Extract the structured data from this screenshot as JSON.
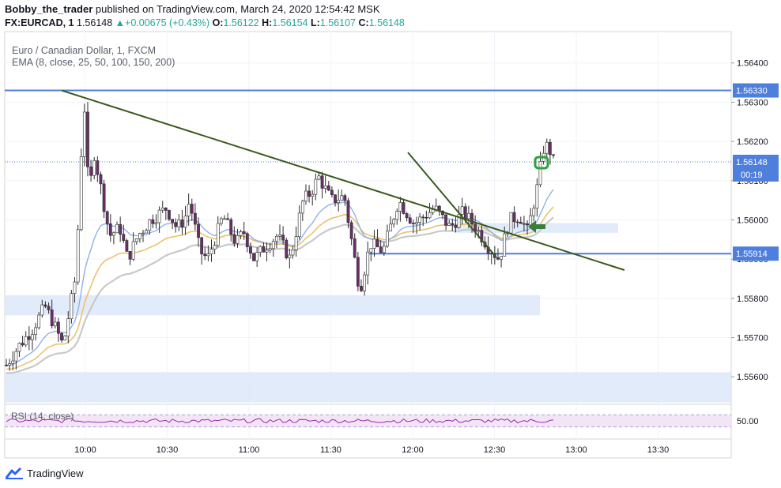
{
  "header": {
    "author": "Bobby_the_trader",
    "published_text": "published on TradingView.com, March 24, 2020 12:54:42 MSK",
    "symbol": "FX:EURCAD, 1",
    "last": "1.56148",
    "change": "+0.00675 (+0.43%)",
    "o_label": "O:",
    "o_value": "1.56122",
    "h_label": "H:",
    "h_value": "1.56154",
    "l_label": "L:",
    "l_value": "1.56107",
    "c_label": "C:",
    "c_value": "1.56148"
  },
  "legend": {
    "title": "Euro / Canadian Dollar, 1, FXCM",
    "ema": "EMA (8, close, 25, 50, 100, 150, 200)",
    "rsi": "RSI (14, close)"
  },
  "footer": {
    "brand": "TradingView"
  },
  "colors": {
    "bull": "#ffffff",
    "bear": "#6b2f6b",
    "wick": "#2b2b2b",
    "hline": "#4f7fdc",
    "zone": "#dce7f8",
    "trend": "#3a5a1c",
    "ema_fast": "#8fb2e8",
    "ema_mid": "#ecc26b",
    "ema_slow": "#c9c9cc",
    "rsi": "#9c27b0",
    "rsi_band": "#f3e5f5",
    "marker": "#2aa33a",
    "price_tag": "#4f7fdc",
    "arrow": "#3b7d3b"
  },
  "chart_data": {
    "type": "candlestick",
    "title": "Euro / Canadian Dollar, 1, FXCM",
    "ylim": [
      1.5553,
      1.5648
    ],
    "y_ticks": [
      "1.56400",
      "1.56300",
      "1.56200",
      "1.56100",
      "1.56000",
      "1.55900",
      "1.55800",
      "1.55700",
      "1.55600"
    ],
    "x_ticks": [
      "10:00",
      "10:30",
      "11:00",
      "11:30",
      "12:00",
      "12:30",
      "13:00",
      "13:30"
    ],
    "levels": [
      {
        "price": 1.5633,
        "label": "1.56330"
      },
      {
        "price": 1.55914,
        "label": "1.55914"
      }
    ],
    "current_price": {
      "price": 1.56148,
      "label": "1.56148",
      "countdown": "00:19"
    },
    "zones": [
      {
        "from": 1.55757,
        "to": 1.55808
      },
      {
        "from": 1.55535,
        "to": 1.55612
      },
      {
        "from": 1.55967,
        "to": 1.55992
      }
    ],
    "rsi": {
      "level_label": "50.00",
      "upper": 70,
      "lower": 30
    }
  }
}
